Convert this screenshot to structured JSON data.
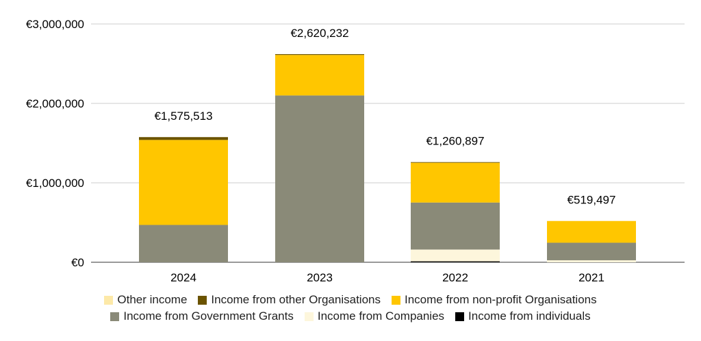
{
  "chart_data": {
    "type": "bar",
    "stacked": true,
    "categories": [
      "2024",
      "2023",
      "2022",
      "2021"
    ],
    "totals": [
      "€1,575,513",
      "€2,620,232",
      "€1,260,897",
      "€519,497"
    ],
    "y_ticks": [
      {
        "value": 0,
        "label": "€0"
      },
      {
        "value": 1000000,
        "label": "€1,000,000"
      },
      {
        "value": 2000000,
        "label": "€2,000,000"
      },
      {
        "value": 3000000,
        "label": "€3,000,000"
      }
    ],
    "ylim": [
      0,
      3000000
    ],
    "grid": true,
    "legend_position": "bottom",
    "series": [
      {
        "name": "Income from individuals",
        "color": "#000000",
        "values": [
          0,
          0,
          12000,
          0
        ]
      },
      {
        "name": "Income from Companies",
        "color": "#fdf6dc",
        "values": [
          0,
          0,
          148000,
          25000
        ]
      },
      {
        "name": "Income from Government Grants",
        "color": "#8a8a78",
        "values": [
          470000,
          2100000,
          592000,
          221000
        ]
      },
      {
        "name": "Income from non-profit Organisations",
        "color": "#ffc600",
        "values": [
          1070000,
          510000,
          501000,
          273497
        ]
      },
      {
        "name": "Income from other Organisations",
        "color": "#6b5300",
        "values": [
          35513,
          10232,
          7897,
          0
        ]
      },
      {
        "name": "Other income",
        "color": "#fde9a8",
        "values": [
          0,
          0,
          0,
          0
        ]
      }
    ],
    "legend_rows": [
      [
        "Other income",
        "Income from other Organisations",
        "Income from non-profit Organisations"
      ],
      [
        "Income from Government Grants",
        "Income from Companies",
        "Income from individuals"
      ]
    ]
  }
}
